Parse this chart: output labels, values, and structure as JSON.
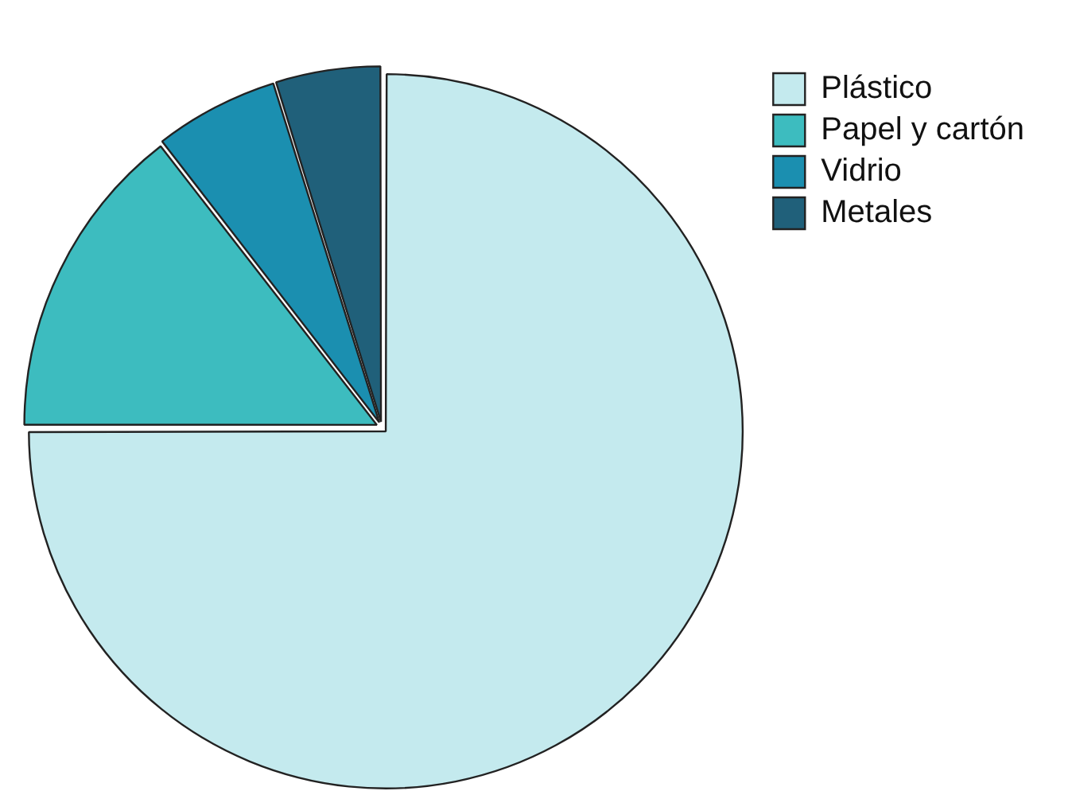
{
  "chart_data": {
    "type": "pie",
    "categories": [
      "Plástico",
      "Papel y cartón",
      "Vidrio",
      "Metales"
    ],
    "values": [
      75,
      14.5,
      5.7,
      4.8
    ],
    "colors": [
      "#c4eaee",
      "#3dbcbf",
      "#1b8fb0",
      "#20607a"
    ],
    "legend": "top right"
  }
}
